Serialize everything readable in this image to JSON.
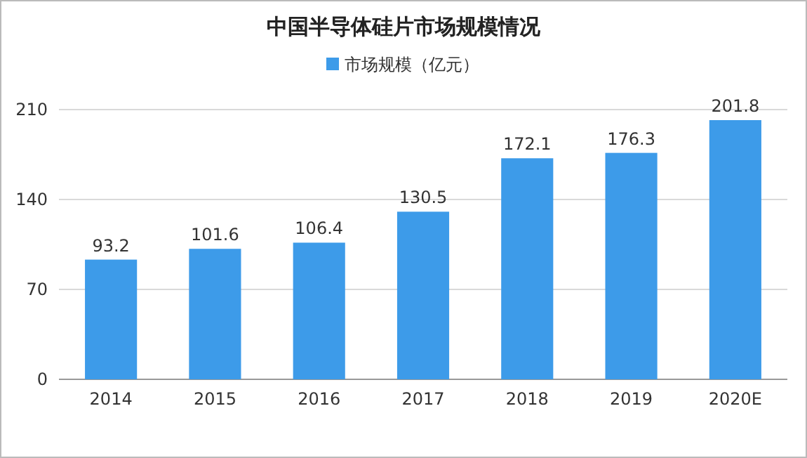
{
  "chart_data": {
    "type": "bar",
    "title": "中国半导体硅片市场规模情况",
    "categories": [
      "2014",
      "2015",
      "2016",
      "2017",
      "2018",
      "2019",
      "2020E"
    ],
    "series": [
      {
        "name": "市场规模（亿元）",
        "color": "#3d9be9",
        "values": [
          93.2,
          101.6,
          106.4,
          130.5,
          172.1,
          176.3,
          201.8
        ]
      }
    ],
    "ylim": [
      0,
      210
    ],
    "yticks": [
      0,
      70,
      140,
      210
    ],
    "grid": "y",
    "legend": "top",
    "data_labels": true
  }
}
